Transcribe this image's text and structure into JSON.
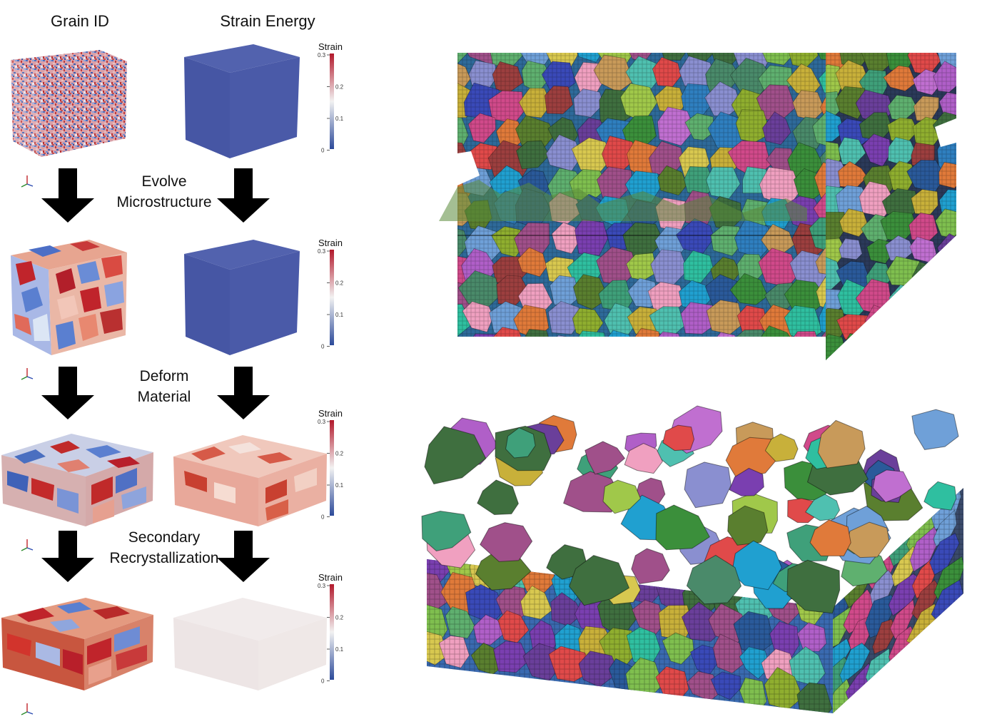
{
  "headers": {
    "grain_id": "Grain ID",
    "strain_energy": "Strain Energy"
  },
  "steps": [
    {
      "line1": "Evolve",
      "line2": "Microstructure"
    },
    {
      "line1": "Deform",
      "line2": "Material"
    },
    {
      "line1": "Secondary",
      "line2": "Recrystallization"
    }
  ],
  "colorbar": {
    "title": "Strain",
    "ticks": [
      "0.3",
      "0.2",
      "0.1",
      "0"
    ],
    "colors": {
      "high": "#b2182b",
      "mid": "#f2f2f2",
      "low": "#2c4a9a"
    }
  },
  "palette": {
    "grain_blue": "#5a7fd0",
    "grain_red": "#c83232",
    "strain_blue": "#4a5aa8",
    "arrow": "#000000"
  },
  "icons": [
    "axes-triad-icon",
    "down-arrow-icon"
  ]
}
